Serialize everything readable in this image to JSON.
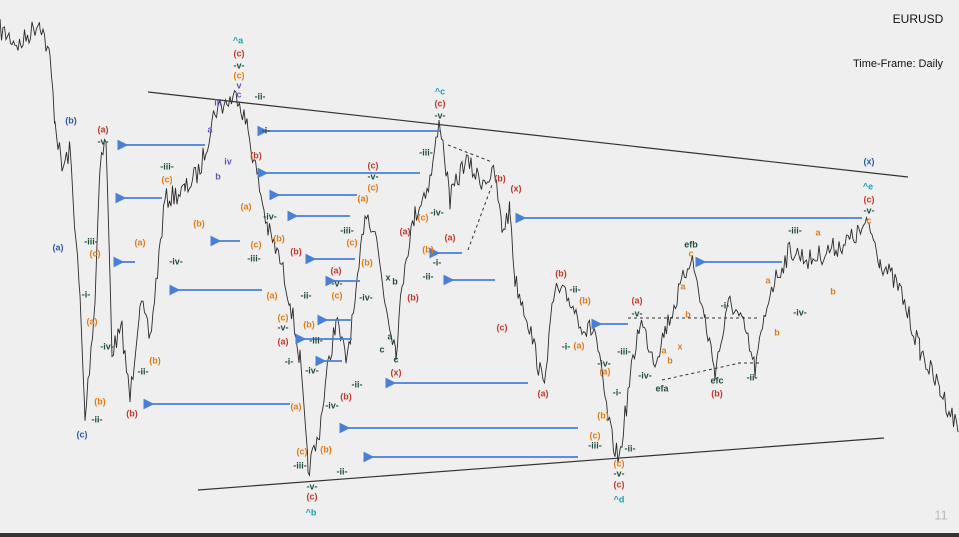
{
  "header": {
    "title": "EURUSD",
    "timeframe": "Time-Frame:  Daily"
  },
  "page_number": "11",
  "wave_labels": [
    "(b)",
    "(a)",
    "(c)",
    "(x)",
    "^a",
    "^b",
    "^c",
    "^d",
    "^e",
    "(c)",
    "-v-",
    "(c)",
    "v",
    "c",
    "-ii-",
    "(c)",
    "-v-",
    "(a)",
    "-v-",
    "(b)",
    "(b)",
    "-ii-",
    "-iii-",
    "(c)",
    "-i-",
    "(a)",
    "-iv-",
    "(a)",
    "(b)",
    "-ii-",
    "-iii-",
    "(c)",
    "-iv-",
    "(b)",
    "-i-",
    "(b)",
    "(a)",
    "-iv-",
    "(c)",
    "-iii-",
    "(b)",
    "(b)",
    "(a)",
    "-ii-",
    "(c)",
    "-v-",
    "(a)",
    "-i-",
    "(b)",
    "-iii-",
    "-iv-",
    "(a)",
    "(c)",
    "-iii-",
    "-ii-",
    "-v-",
    "(c)",
    "(b)",
    "-iv-",
    "(b)",
    "-ii-",
    "(a)",
    "-v-",
    "(c)",
    "(c)",
    "-v-",
    "(c)",
    "(a)",
    "-iii-",
    "(c)",
    "(b)",
    "-iv-",
    "x",
    "b",
    "a",
    "c",
    "c",
    "(x)",
    "(a)",
    "(b)",
    "-iii-",
    "-iv-",
    "(c)",
    "(b)",
    "-i-",
    "-ii-",
    "(a)",
    "(b)",
    "(x)",
    "(c)",
    "(a)",
    "(b)",
    "-ii-",
    "(b)",
    "(a)",
    "-i-",
    "-iv-",
    "(a)",
    "-iii-",
    "(b)",
    "(c)",
    "-iii-",
    "-i-",
    "(c)",
    "-v-",
    "(c)",
    "-ii-",
    "(a)",
    "-v-",
    "-iv-",
    "efa",
    "efb",
    "efc",
    "(b)",
    "-i-",
    "-ii-",
    "-iii-",
    "-iv-",
    "-v-",
    "(c)",
    "c",
    "a",
    "b",
    "a",
    "b",
    "c",
    "a",
    "b",
    "x",
    "a",
    "b",
    "iv",
    "iii",
    "b",
    "a"
  ]
}
